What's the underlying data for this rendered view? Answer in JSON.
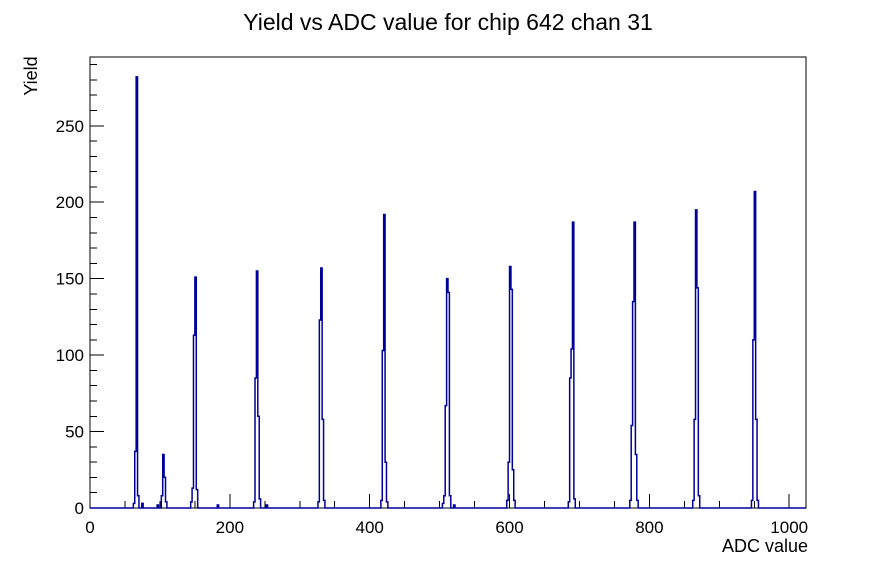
{
  "title": "Yield vs ADC value for chip 642 chan 31",
  "chart_data": {
    "type": "line",
    "style": "step-histogram",
    "title": "Yield vs ADC value for chip 642 chan 31",
    "xlabel": "ADC value",
    "ylabel": "Yield",
    "xlim": [
      0,
      1024
    ],
    "ylim": [
      0,
      295
    ],
    "grid": false,
    "legend": "none",
    "line_color": "#000099",
    "axis_color": "#000000",
    "background_color": "#ffffff",
    "bin_width": 2,
    "x_major_ticks": [
      0,
      200,
      400,
      600,
      800,
      1000
    ],
    "x_minor_step": 50,
    "y_major_ticks": [
      0,
      50,
      100,
      150,
      200,
      250
    ],
    "y_minor_step": 10,
    "peaks": [
      {
        "adc": 66,
        "yield": 282
      },
      {
        "adc": 104,
        "yield": 35
      },
      {
        "adc": 150,
        "yield": 151
      },
      {
        "adc": 238,
        "yield": 155
      },
      {
        "adc": 330,
        "yield": 157
      },
      {
        "adc": 420,
        "yield": 192
      },
      {
        "adc": 510,
        "yield": 150
      },
      {
        "adc": 600,
        "yield": 158
      },
      {
        "adc": 690,
        "yield": 187
      },
      {
        "adc": 778,
        "yield": 187
      },
      {
        "adc": 866,
        "yield": 195
      },
      {
        "adc": 950,
        "yield": 207
      }
    ],
    "bins": [
      [
        62,
        3
      ],
      [
        64,
        37
      ],
      [
        66,
        282
      ],
      [
        68,
        8
      ],
      [
        74,
        3
      ],
      [
        96,
        2
      ],
      [
        102,
        8
      ],
      [
        104,
        35
      ],
      [
        106,
        20
      ],
      [
        108,
        4
      ],
      [
        144,
        4
      ],
      [
        146,
        13
      ],
      [
        148,
        113
      ],
      [
        150,
        151
      ],
      [
        152,
        12
      ],
      [
        182,
        2
      ],
      [
        234,
        4
      ],
      [
        236,
        85
      ],
      [
        238,
        155
      ],
      [
        240,
        60
      ],
      [
        242,
        6
      ],
      [
        252,
        2
      ],
      [
        326,
        4
      ],
      [
        328,
        123
      ],
      [
        330,
        157
      ],
      [
        332,
        58
      ],
      [
        334,
        5
      ],
      [
        416,
        5
      ],
      [
        418,
        103
      ],
      [
        420,
        192
      ],
      [
        422,
        30
      ],
      [
        424,
        4
      ],
      [
        504,
        3
      ],
      [
        506,
        8
      ],
      [
        508,
        67
      ],
      [
        510,
        150
      ],
      [
        512,
        141
      ],
      [
        514,
        8
      ],
      [
        520,
        2
      ],
      [
        596,
        5
      ],
      [
        598,
        30
      ],
      [
        600,
        158
      ],
      [
        602,
        143
      ],
      [
        604,
        25
      ],
      [
        606,
        5
      ],
      [
        684,
        4
      ],
      [
        686,
        85
      ],
      [
        688,
        104
      ],
      [
        690,
        187
      ],
      [
        692,
        6
      ],
      [
        772,
        5
      ],
      [
        774,
        54
      ],
      [
        776,
        135
      ],
      [
        778,
        187
      ],
      [
        780,
        35
      ],
      [
        782,
        5
      ],
      [
        862,
        5
      ],
      [
        864,
        58
      ],
      [
        866,
        195
      ],
      [
        868,
        144
      ],
      [
        870,
        8
      ],
      [
        946,
        5
      ],
      [
        948,
        110
      ],
      [
        950,
        207
      ],
      [
        952,
        58
      ],
      [
        954,
        5
      ]
    ]
  }
}
